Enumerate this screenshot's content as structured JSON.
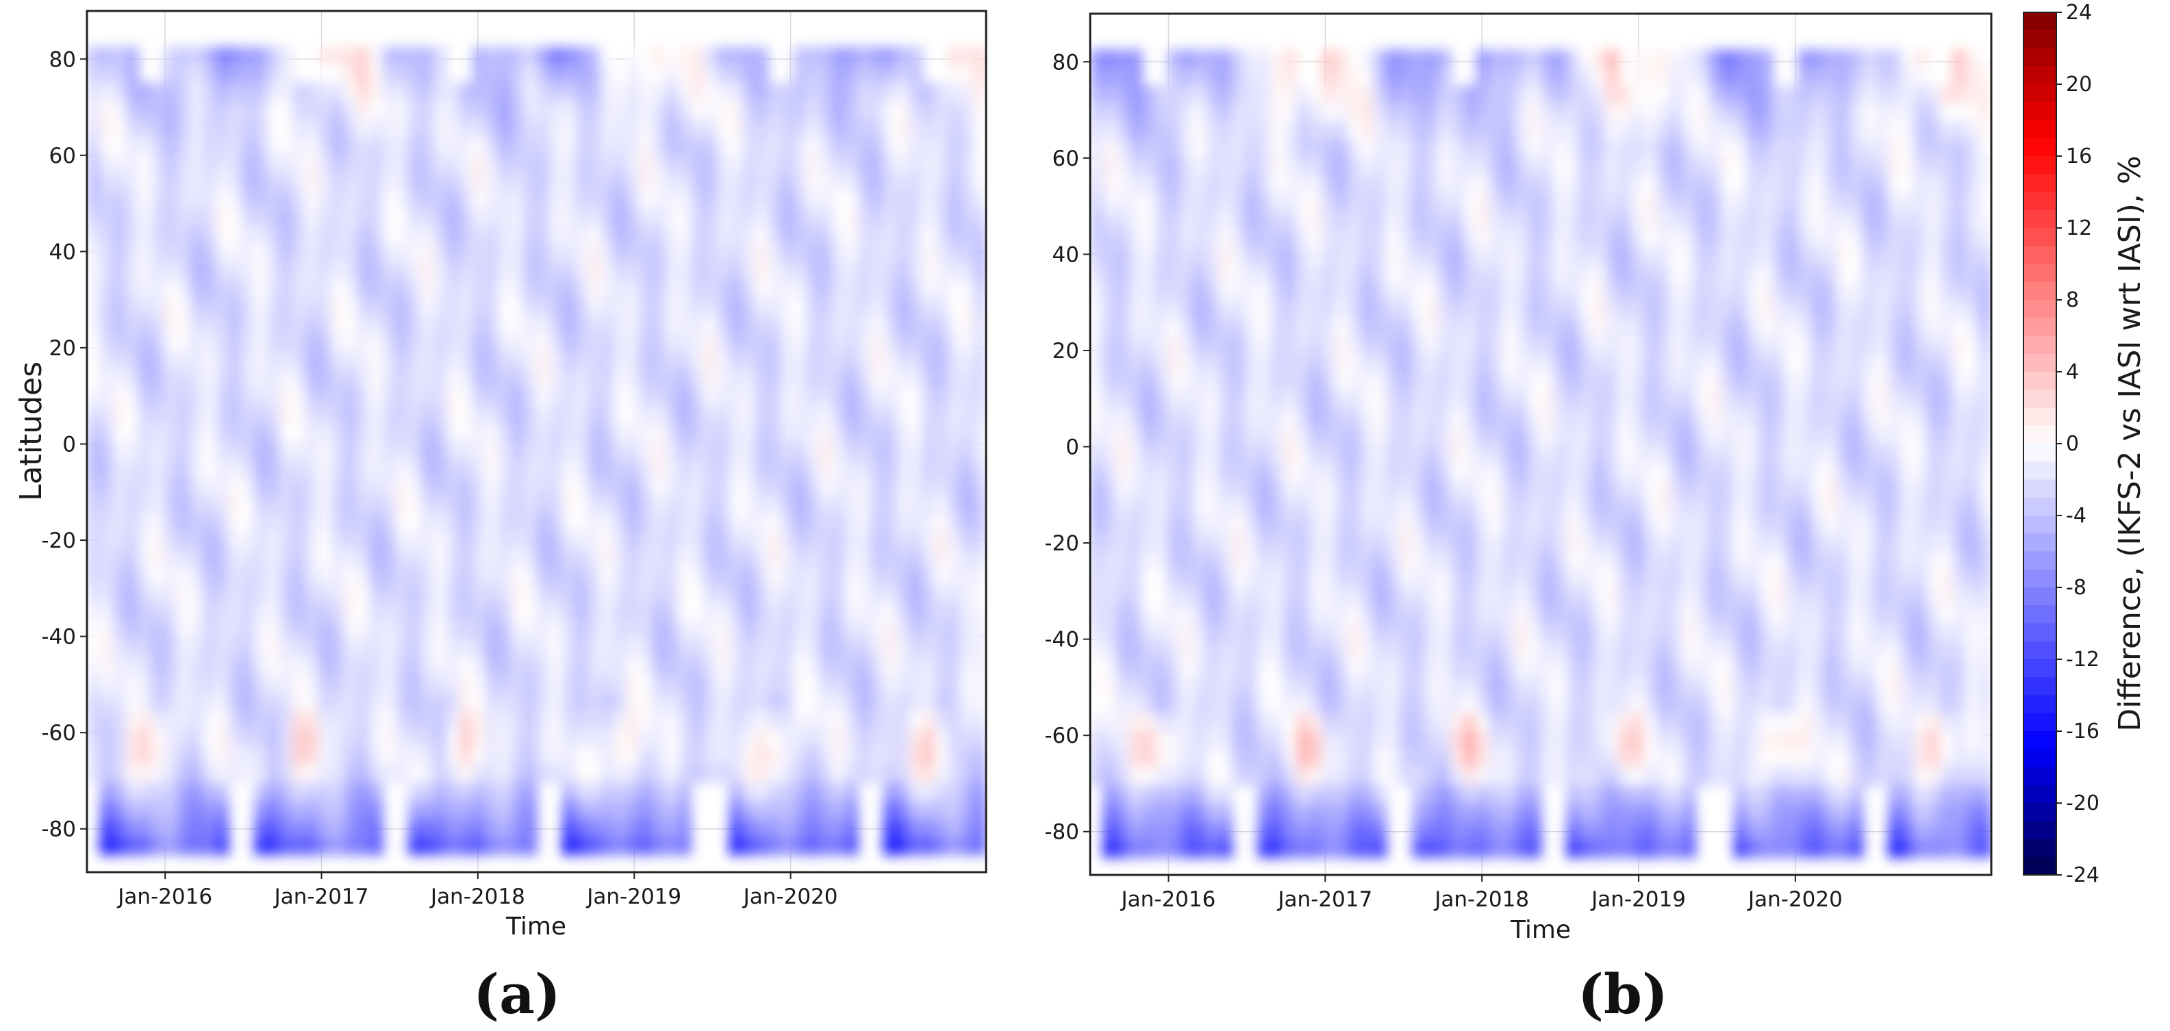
{
  "chart_data": {
    "panels": [
      {
        "panel_label": "(a)",
        "type": "heatmap",
        "xlabel": "Time",
        "ylabel": "Latitudes",
        "x_tick_labels": [
          "Jan-2016",
          "Jan-2017",
          "Jan-2018",
          "Jan-2019",
          "Jan-2020"
        ],
        "x_ticks_year": [
          2016,
          2017,
          2018,
          2019,
          2020
        ],
        "xlim_year": [
          2015.5,
          2021.25
        ],
        "y_ticks": [
          80,
          60,
          40,
          20,
          0,
          -20,
          -40,
          -60,
          -80
        ],
        "y_tick_labels": [
          "80",
          "60",
          "40",
          "20",
          "0",
          "-20",
          "-40",
          "-60",
          "-80"
        ],
        "ylim": [
          -89,
          90
        ],
        "grid": true
      },
      {
        "panel_label": "(b)",
        "type": "heatmap",
        "xlabel": "Time",
        "ylabel": "",
        "x_tick_labels": [
          "Jan-2016",
          "Jan-2017",
          "Jan-2018",
          "Jan-2019",
          "Jan-2020"
        ],
        "x_ticks_year": [
          2016,
          2017,
          2018,
          2019,
          2020
        ],
        "xlim_year": [
          2015.5,
          2021.25
        ],
        "y_ticks": [
          80,
          60,
          40,
          20,
          0,
          -20,
          -40,
          -60,
          -80
        ],
        "y_tick_labels": [
          "80",
          "60",
          "40",
          "20",
          "0",
          "-20",
          "-40",
          "-60",
          "-80"
        ],
        "ylim": [
          -89,
          90
        ],
        "grid": true
      }
    ],
    "colorbar": {
      "label": "Difference, (IKFS-2 vs IASI wrt IASI), %",
      "vmin": -24,
      "vmax": 24,
      "ticks": [
        24,
        20,
        16,
        12,
        8,
        4,
        0,
        -4,
        -8,
        -12,
        -16,
        -20,
        -24
      ],
      "tick_labels": [
        "24",
        "20",
        "16",
        "12",
        "8",
        "4",
        "0",
        "-4",
        "-8",
        "-12",
        "-16",
        "-20",
        "-24"
      ],
      "colormap": "seismic",
      "color_low": "#00004c",
      "color_mid": "#ffffff",
      "color_high": "#800000"
    }
  }
}
